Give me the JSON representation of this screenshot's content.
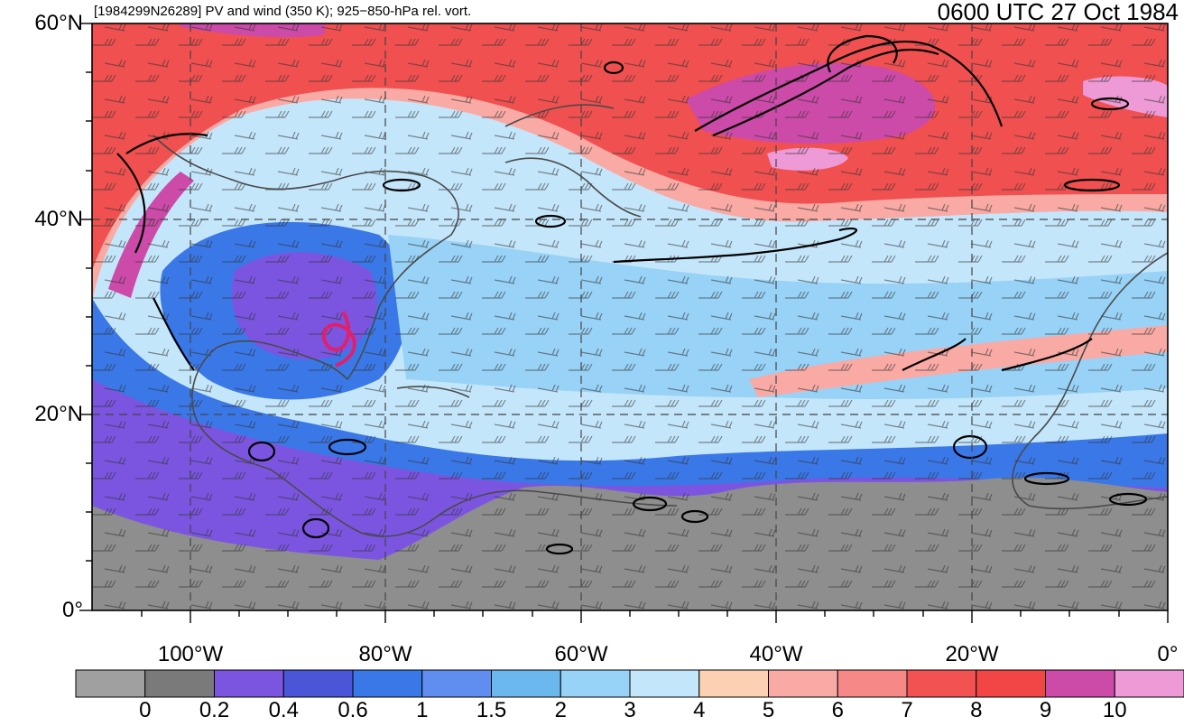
{
  "header": {
    "case_label": "[1984299N26289] PV and wind (350 K); 925−850-hPa rel. vort.",
    "valid_time": "0600 UTC 27 Oct 1984"
  },
  "axes": {
    "lat_labels": [
      "60°N",
      "40°N",
      "20°N",
      "0°"
    ],
    "lat_values": [
      60,
      40,
      20,
      0
    ],
    "lon_labels": [
      "100°W",
      "80°W",
      "60°W",
      "40°W",
      "20°W",
      "0°"
    ],
    "lon_values": [
      -100,
      -80,
      -60,
      -40,
      -20,
      0
    ],
    "lon_range": [
      -110,
      0
    ],
    "lat_range": [
      0,
      60
    ]
  },
  "colorbar": {
    "labels": [
      "0",
      "0.2",
      "0.4",
      "0.6",
      "1",
      "1.5",
      "2",
      "3",
      "4",
      "5",
      "6",
      "7",
      "8",
      "9",
      "10"
    ],
    "colors": [
      "#a0a0a0",
      "#7a7a7a",
      "#7b55e0",
      "#4a55d8",
      "#3a78e8",
      "#5f8ef0",
      "#6ab8ee",
      "#98d2f6",
      "#c4e6fb",
      "#fbd0b3",
      "#f9aaa5",
      "#f78888",
      "#f25252",
      "#f24545",
      "#cc4aa8",
      "#ee9ad6"
    ]
  },
  "map": {
    "colors": {
      "gray": "#8e8e8e",
      "purple": "#7b55e0",
      "blue": "#3a78e8",
      "lightblue": "#98d2f6",
      "paleblue": "#c4e6fb",
      "salmon": "#f9aaa5",
      "red": "#f05050",
      "magenta": "#cc4aa8",
      "pink": "#ee9ad6",
      "track": "#e0206a"
    }
  }
}
